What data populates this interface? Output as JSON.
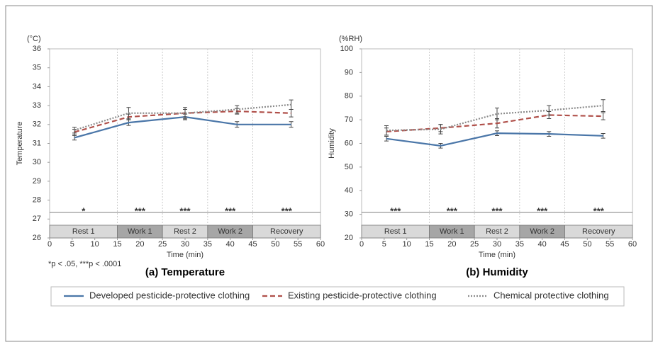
{
  "chart_data": [
    {
      "type": "line",
      "title": "(a) Temperature",
      "unit_label": "(°C)",
      "y_label": "Temperature",
      "x_label": "Time (min)",
      "footnote": "*p < .05, ***p < .0001",
      "xlim": [
        0,
        60
      ],
      "xticks": [
        0,
        5,
        10,
        15,
        20,
        25,
        30,
        35,
        40,
        45,
        50,
        55,
        60
      ],
      "ylim": [
        26,
        36
      ],
      "yticks": [
        26,
        27,
        28,
        29,
        30,
        31,
        32,
        33,
        34,
        35,
        36
      ],
      "x": [
        5.5,
        17.5,
        30,
        41.5,
        53.5
      ],
      "series": [
        {
          "name": "Developed pesticide-protective clothing",
          "color": "#4a76a8",
          "dash": "solid",
          "values": [
            31.3,
            32.1,
            32.4,
            32.0,
            32.0
          ],
          "errors": [
            0.12,
            0.15,
            0.15,
            0.15,
            0.15
          ]
        },
        {
          "name": "Existing pesticide-protective clothing",
          "color": "#b0504a",
          "dash": "dashed",
          "values": [
            31.6,
            32.4,
            32.6,
            32.7,
            32.6
          ],
          "errors": [
            0.15,
            0.15,
            0.2,
            0.15,
            0.2
          ]
        },
        {
          "name": "Chemical protective clothing",
          "color": "#8c8c8c",
          "dash": "dotted",
          "values": [
            31.7,
            32.6,
            32.6,
            32.8,
            33.05
          ],
          "errors": [
            0.15,
            0.3,
            0.3,
            0.2,
            0.25
          ]
        }
      ],
      "significance": [
        {
          "x": 7.5,
          "label": "*"
        },
        {
          "x": 20,
          "label": "***"
        },
        {
          "x": 30,
          "label": "***"
        },
        {
          "x": 40,
          "label": "***"
        },
        {
          "x": 52.5,
          "label": "***"
        }
      ],
      "phases": [
        {
          "label": "Rest 1",
          "start": 0,
          "end": 15,
          "color": "#d9d9d9"
        },
        {
          "label": "Work 1",
          "start": 15,
          "end": 25,
          "color": "#a6a6a6"
        },
        {
          "label": "Rest 2",
          "start": 25,
          "end": 35,
          "color": "#d9d9d9"
        },
        {
          "label": "Work 2",
          "start": 35,
          "end": 45,
          "color": "#a6a6a6"
        },
        {
          "label": "Recovery",
          "start": 45,
          "end": 60,
          "color": "#d9d9d9"
        }
      ]
    },
    {
      "type": "line",
      "title": "(b) Humidity",
      "unit_label": "(%RH)",
      "y_label": "Humidity",
      "x_label": "Time (min)",
      "xlim": [
        0,
        60
      ],
      "xticks": [
        0,
        5,
        10,
        15,
        20,
        25,
        30,
        35,
        40,
        45,
        50,
        55,
        60
      ],
      "ylim": [
        20,
        100
      ],
      "yticks": [
        20,
        30,
        40,
        50,
        60,
        70,
        80,
        90,
        100
      ],
      "x": [
        5.5,
        17.5,
        30,
        41.5,
        53.5
      ],
      "series": [
        {
          "name": "Developed pesticide-protective clothing",
          "color": "#4a76a8",
          "dash": "solid",
          "values": [
            62,
            59,
            64.3,
            64,
            63.2
          ],
          "errors": [
            1,
            1,
            1,
            1,
            1
          ]
        },
        {
          "name": "Existing pesticide-protective clothing",
          "color": "#b0504a",
          "dash": "dashed",
          "values": [
            65,
            66.5,
            68.5,
            72,
            71.5
          ],
          "errors": [
            1.5,
            1.5,
            2,
            1.5,
            1.5
          ]
        },
        {
          "name": "Chemical protective clothing",
          "color": "#8c8c8c",
          "dash": "dotted",
          "values": [
            65.5,
            66,
            72.5,
            74,
            76
          ],
          "errors": [
            2,
            2,
            2.5,
            2,
            2.5
          ]
        }
      ],
      "significance": [
        {
          "x": 7.5,
          "label": "***"
        },
        {
          "x": 20,
          "label": "***"
        },
        {
          "x": 30,
          "label": "***"
        },
        {
          "x": 40,
          "label": "***"
        },
        {
          "x": 52.5,
          "label": "***"
        }
      ],
      "phases": [
        {
          "label": "Rest 1",
          "start": 0,
          "end": 15,
          "color": "#d9d9d9"
        },
        {
          "label": "Work 1",
          "start": 15,
          "end": 25,
          "color": "#a6a6a6"
        },
        {
          "label": "Rest 2",
          "start": 25,
          "end": 35,
          "color": "#d9d9d9"
        },
        {
          "label": "Work 2",
          "start": 35,
          "end": 45,
          "color": "#a6a6a6"
        },
        {
          "label": "Recovery",
          "start": 45,
          "end": 60,
          "color": "#d9d9d9"
        }
      ]
    }
  ]
}
